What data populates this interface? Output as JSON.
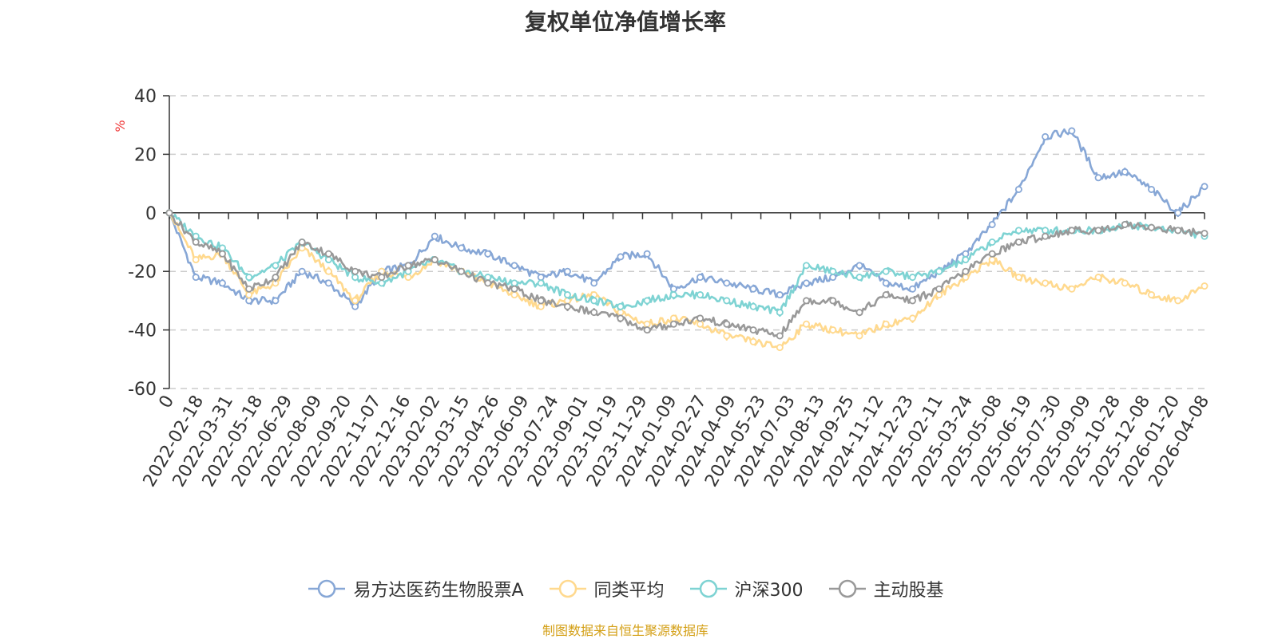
{
  "chart_data": {
    "type": "line",
    "title": "复权单位净值增长率",
    "ylabel": "%",
    "ylim": [
      -60,
      40
    ],
    "yticks": [
      40,
      20,
      0,
      -20,
      -40,
      -60
    ],
    "grid": true,
    "legend_position": "bottom-center",
    "x_tick_labels": [
      "0",
      "2022-02-18",
      "2022-03-31",
      "2022-05-18",
      "2022-06-29",
      "2022-08-09",
      "2022-09-20",
      "2022-11-07",
      "2022-12-16",
      "2023-02-02",
      "2023-03-15",
      "2023-04-26",
      "2023-06-09",
      "2023-07-24",
      "2023-09-01",
      "2023-10-19",
      "2023-11-29",
      "2024-01-09",
      "2024-02-27",
      "2024-04-09",
      "2024-05-23",
      "2024-07-03",
      "2024-08-13",
      "2024-09-25",
      "2024-11-12",
      "2024-12-23",
      "2025-02-11",
      "2025-03-24",
      "2025-05-08",
      "2025-06-19",
      "2025-07-30",
      "2025-09-09",
      "2025-10-28",
      "2025-12-08",
      "2026-01-20",
      "2026-04-08"
    ],
    "series": [
      {
        "name": "易方达医药生物股票A",
        "color": "#87a7d6",
        "values": [
          0,
          -22,
          -24,
          -30,
          -30,
          -20,
          -24,
          -32,
          -20,
          -18,
          -8,
          -12,
          -14,
          -18,
          -22,
          -20,
          -24,
          -15,
          -14,
          -26,
          -22,
          -24,
          -26,
          -28,
          -24,
          -22,
          -18,
          -24,
          -26,
          -20,
          -14,
          -4,
          8,
          26,
          28,
          12,
          14,
          8,
          0,
          9
        ]
      },
      {
        "name": "同类平均",
        "color": "#ffd98e",
        "values": [
          0,
          -16,
          -14,
          -28,
          -24,
          -12,
          -20,
          -30,
          -20,
          -22,
          -16,
          -20,
          -24,
          -28,
          -32,
          -30,
          -28,
          -34,
          -38,
          -36,
          -38,
          -42,
          -44,
          -46,
          -38,
          -40,
          -42,
          -38,
          -36,
          -28,
          -22,
          -16,
          -22,
          -24,
          -26,
          -22,
          -24,
          -28,
          -30,
          -25
        ]
      },
      {
        "name": "沪深300",
        "color": "#7ed3d3",
        "values": [
          0,
          -8,
          -12,
          -22,
          -18,
          -10,
          -16,
          -22,
          -24,
          -20,
          -16,
          -20,
          -22,
          -24,
          -24,
          -28,
          -30,
          -32,
          -30,
          -28,
          -28,
          -30,
          -32,
          -34,
          -18,
          -20,
          -22,
          -20,
          -22,
          -20,
          -16,
          -10,
          -6,
          -6,
          -6,
          -6,
          -4,
          -5,
          -6,
          -8
        ]
      },
      {
        "name": "主动股基",
        "color": "#999999",
        "values": [
          0,
          -10,
          -14,
          -26,
          -22,
          -10,
          -14,
          -20,
          -22,
          -18,
          -16,
          -20,
          -24,
          -26,
          -30,
          -32,
          -34,
          -36,
          -40,
          -38,
          -36,
          -38,
          -40,
          -42,
          -30,
          -30,
          -34,
          -28,
          -30,
          -26,
          -20,
          -14,
          -10,
          -8,
          -6,
          -6,
          -4,
          -5,
          -6,
          -7
        ]
      }
    ]
  },
  "source_note": "制图数据来自恒生聚源数据库"
}
